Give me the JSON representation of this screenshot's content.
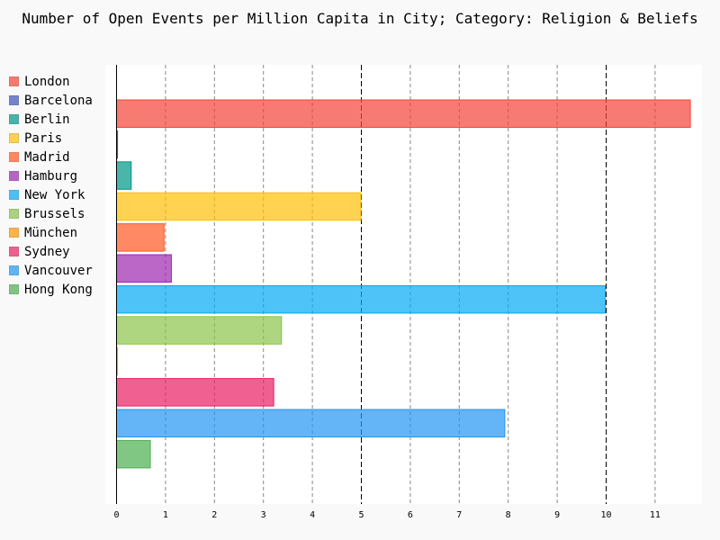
{
  "chart_data": {
    "type": "bar",
    "orientation": "horizontal",
    "title": "Number of Open Events per Million Capita in City; Category: Religion & Beliefs",
    "xlabel": "",
    "ylabel": "",
    "xlim": [
      0,
      11.8
    ],
    "x_ticks": [
      0,
      1,
      2,
      3,
      4,
      5,
      6,
      7,
      8,
      9,
      10,
      11
    ],
    "grid": "vertical dashed",
    "legend_position": "left",
    "categories": [
      "London",
      "Barcelona",
      "Berlin",
      "Paris",
      "Madrid",
      "Hamburg",
      "New York",
      "Brussels",
      "München",
      "Sydney",
      "Vancouver",
      "Hong Kong"
    ],
    "values": [
      11.72,
      0.02,
      0.3,
      4.99,
      0.97,
      1.12,
      9.98,
      3.37,
      0.02,
      3.21,
      7.93,
      0.69
    ],
    "colors": [
      "#f44336",
      "#3f51b5",
      "#009688",
      "#ffc107",
      "#ff5722",
      "#9c27b0",
      "#03a9f4",
      "#8bc34a",
      "#ff9800",
      "#e91e63",
      "#2196f3",
      "#4caf50"
    ]
  }
}
